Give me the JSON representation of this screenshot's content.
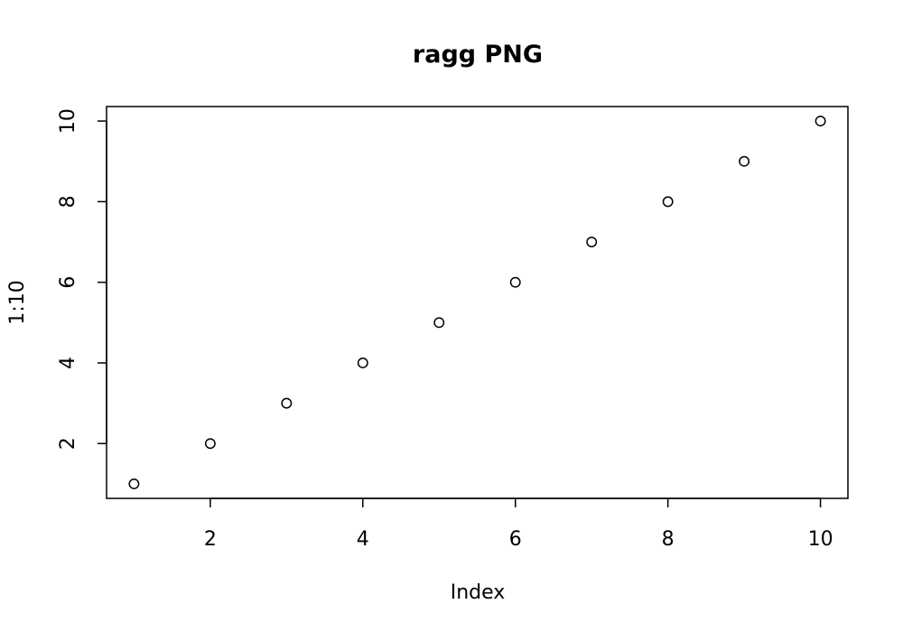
{
  "chart_data": {
    "type": "scatter",
    "title": "ragg PNG",
    "xlabel": "Index",
    "ylabel": "1:10",
    "x": [
      1,
      2,
      3,
      4,
      5,
      6,
      7,
      8,
      9,
      10
    ],
    "y": [
      1,
      2,
      3,
      4,
      5,
      6,
      7,
      8,
      9,
      10
    ],
    "xlim": [
      0.64,
      10.36
    ],
    "ylim": [
      0.64,
      10.36
    ],
    "xticks": [
      2,
      4,
      6,
      8,
      10
    ],
    "yticks": [
      2,
      4,
      6,
      8,
      10
    ],
    "grid": false,
    "marker": "open-circle"
  }
}
